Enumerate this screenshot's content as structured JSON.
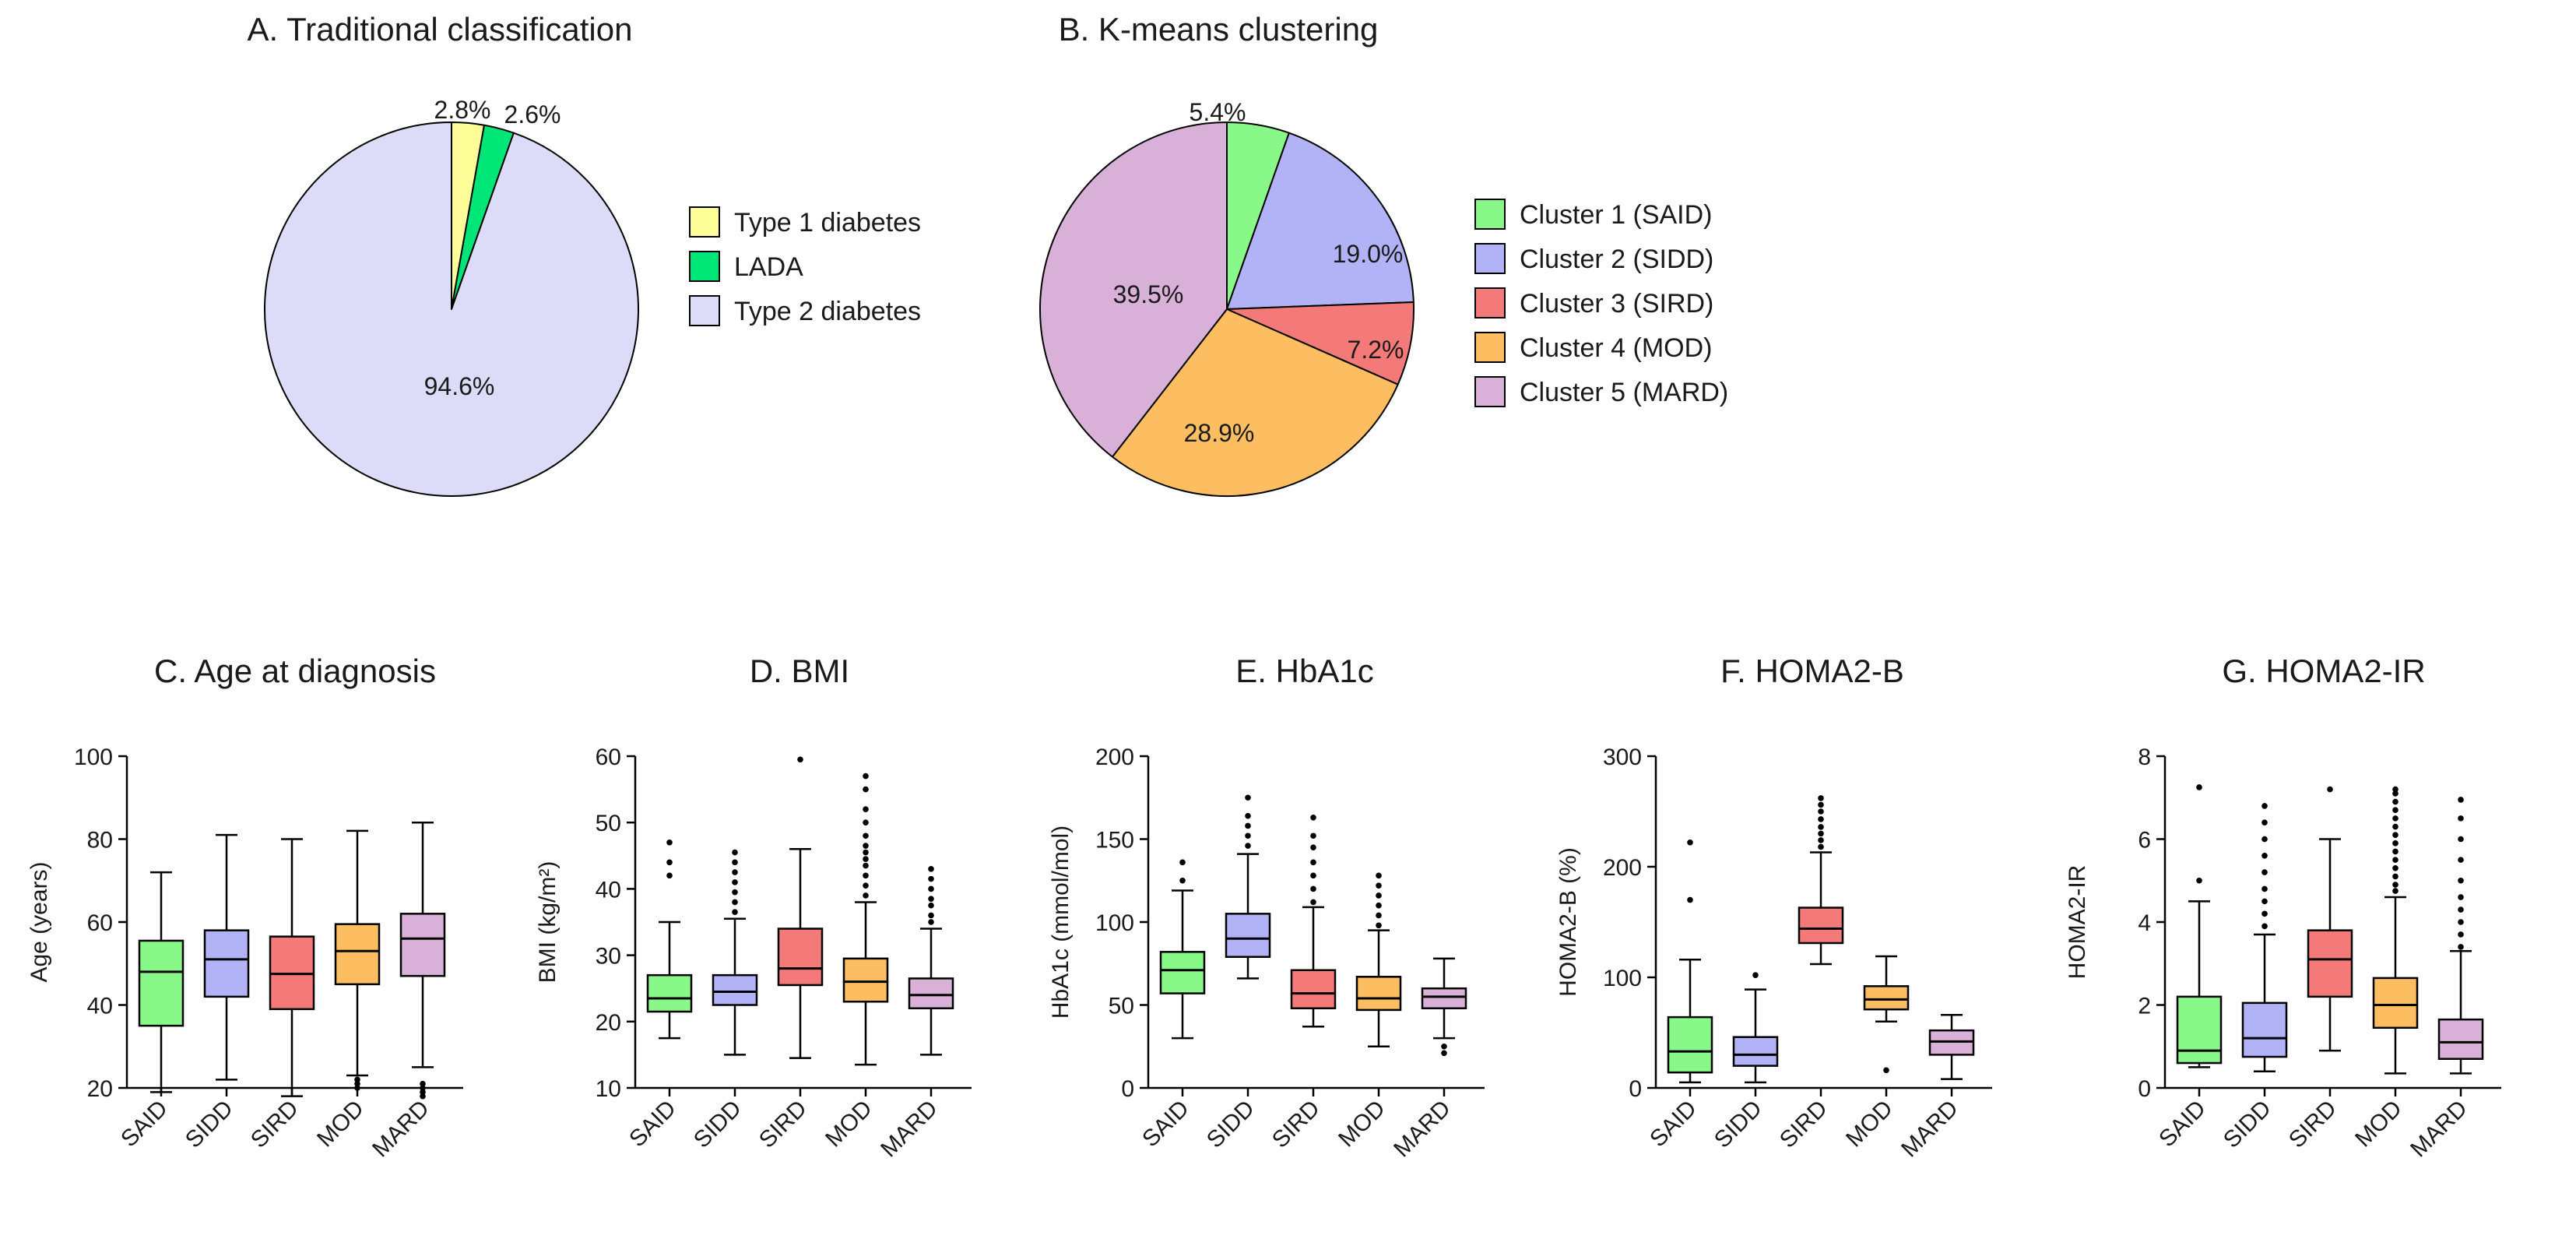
{
  "chart_data": [
    {
      "type": "pie",
      "panel": "A",
      "title": "A. Traditional classification",
      "slices": [
        {
          "label": "Type 1 diabetes",
          "value": 2.8,
          "value_label": "2.8%",
          "color": "#ffff99"
        },
        {
          "label": "LADA",
          "value": 2.6,
          "value_label": "2.6%",
          "color": "#00e676"
        },
        {
          "label": "Type 2 diabetes",
          "value": 94.6,
          "value_label": "94.6%",
          "color": "#dcdcf8"
        }
      ],
      "legend_position": "right"
    },
    {
      "type": "pie",
      "panel": "B",
      "title": "B. K-means clustering",
      "slices": [
        {
          "label": "Cluster 1 (SAID)",
          "value": 5.4,
          "value_label": "5.4%",
          "color": "#88f888"
        },
        {
          "label": "Cluster 2 (SIDD)",
          "value": 19.0,
          "value_label": "19.0%",
          "color": "#b2b2f6"
        },
        {
          "label": "Cluster 3 (SIRD)",
          "value": 7.2,
          "value_label": "7.2%",
          "color": "#f47a7a"
        },
        {
          "label": "Cluster 4 (MOD)",
          "value": 28.9,
          "value_label": "28.9%",
          "color": "#fcbe60"
        },
        {
          "label": "Cluster 5 (MARD)",
          "value": 39.5,
          "value_label": "39.5%",
          "color": "#d8b0d8"
        }
      ],
      "legend_position": "right"
    },
    {
      "type": "box",
      "panel": "C",
      "title": "C. Age at diagnosis",
      "ylabel": "Age (years)",
      "ylim": [
        20,
        100
      ],
      "yticks": [
        "20",
        "40",
        "60",
        "80",
        "100"
      ],
      "categories": [
        "SAID",
        "SIDD",
        "SIRD",
        "MOD",
        "MARD"
      ],
      "colors": [
        "#88f888",
        "#b2b2f6",
        "#f47a7a",
        "#fcbe60",
        "#d8b0d8"
      ],
      "boxes": [
        {
          "min": 19,
          "q1": 35,
          "median": 48,
          "q3": 55.5,
          "max": 72,
          "outliers": []
        },
        {
          "min": 22,
          "q1": 42,
          "median": 51,
          "q3": 58,
          "max": 81,
          "outliers": []
        },
        {
          "min": 18,
          "q1": 39,
          "median": 47.5,
          "q3": 56.5,
          "max": 80,
          "outliers": []
        },
        {
          "min": 23,
          "q1": 45,
          "median": 53,
          "q3": 59.5,
          "max": 82,
          "outliers": [
            22,
            21,
            20
          ]
        },
        {
          "min": 25,
          "q1": 47,
          "median": 56,
          "q3": 62,
          "max": 84,
          "outliers": [
            21,
            20,
            19,
            18
          ]
        }
      ]
    },
    {
      "type": "box",
      "panel": "D",
      "title": "D. BMI",
      "ylabel": "BMI (kg/m²)",
      "ylim": [
        10,
        60
      ],
      "yticks": [
        "10",
        "20",
        "30",
        "40",
        "50",
        "60"
      ],
      "categories": [
        "SAID",
        "SIDD",
        "SIRD",
        "MOD",
        "MARD"
      ],
      "colors": [
        "#88f888",
        "#b2b2f6",
        "#f47a7a",
        "#fcbe60",
        "#d8b0d8"
      ],
      "boxes": [
        {
          "min": 17.5,
          "q1": 21.5,
          "median": 23.5,
          "q3": 27,
          "max": 35,
          "outliers": [
            42,
            44,
            47
          ]
        },
        {
          "min": 15,
          "q1": 22.5,
          "median": 24.5,
          "q3": 27,
          "max": 35.5,
          "outliers": [
            36.5,
            38,
            39.5,
            41,
            42.5,
            44,
            45.5
          ]
        },
        {
          "min": 14.5,
          "q1": 25.5,
          "median": 28,
          "q3": 34,
          "max": 46,
          "outliers": [
            59.5
          ]
        },
        {
          "min": 13.5,
          "q1": 23,
          "median": 26,
          "q3": 29.5,
          "max": 38,
          "outliers": [
            39,
            40.5,
            42,
            43.5,
            44.5,
            45.5,
            46.5,
            48,
            50,
            52,
            55,
            57
          ]
        },
        {
          "min": 15,
          "q1": 22,
          "median": 24,
          "q3": 26.5,
          "max": 34,
          "outliers": [
            35,
            36,
            37.5,
            38.5,
            40,
            41.5,
            43
          ]
        }
      ]
    },
    {
      "type": "box",
      "panel": "E",
      "title": "E. HbA1c",
      "ylabel": "HbA1c (mmol/mol)",
      "ylim": [
        0,
        200
      ],
      "yticks": [
        "0",
        "50",
        "100",
        "150",
        "200"
      ],
      "categories": [
        "SAID",
        "SIDD",
        "SIRD",
        "MOD",
        "MARD"
      ],
      "colors": [
        "#88f888",
        "#b2b2f6",
        "#f47a7a",
        "#fcbe60",
        "#d8b0d8"
      ],
      "boxes": [
        {
          "min": 30,
          "q1": 57,
          "median": 71,
          "q3": 82,
          "max": 119,
          "outliers": [
            125,
            136
          ]
        },
        {
          "min": 66,
          "q1": 79,
          "median": 90,
          "q3": 105,
          "max": 141,
          "outliers": [
            146,
            152,
            158,
            164,
            175
          ]
        },
        {
          "min": 37,
          "q1": 48,
          "median": 57,
          "q3": 71,
          "max": 109,
          "outliers": [
            112,
            120,
            128,
            136,
            145,
            152,
            163
          ]
        },
        {
          "min": 25,
          "q1": 47,
          "median": 54,
          "q3": 67,
          "max": 95,
          "outliers": [
            98,
            104,
            110,
            116,
            122,
            128
          ]
        },
        {
          "min": 30,
          "q1": 48,
          "median": 55,
          "q3": 60,
          "max": 78,
          "outliers": [
            25,
            21
          ]
        }
      ]
    },
    {
      "type": "box",
      "panel": "F",
      "title": "F. HOMA2-B",
      "ylabel": "HOMA2-B (%)",
      "ylim": [
        0,
        300
      ],
      "yticks": [
        "0",
        "100",
        "200",
        "300"
      ],
      "categories": [
        "SAID",
        "SIDD",
        "SIRD",
        "MOD",
        "MARD"
      ],
      "colors": [
        "#88f888",
        "#b2b2f6",
        "#f47a7a",
        "#fcbe60",
        "#d8b0d8"
      ],
      "boxes": [
        {
          "min": 5,
          "q1": 14,
          "median": 33,
          "q3": 64,
          "max": 116,
          "outliers": [
            170,
            222
          ]
        },
        {
          "min": 5,
          "q1": 20,
          "median": 30,
          "q3": 46,
          "max": 89,
          "outliers": [
            102
          ]
        },
        {
          "min": 112,
          "q1": 131,
          "median": 144,
          "q3": 163,
          "max": 213,
          "outliers": [
            218,
            224,
            230,
            236,
            243,
            250,
            256,
            262
          ]
        },
        {
          "min": 60,
          "q1": 71,
          "median": 80,
          "q3": 92,
          "max": 119,
          "outliers": [
            16
          ]
        },
        {
          "min": 8,
          "q1": 30,
          "median": 42,
          "q3": 52,
          "max": 66,
          "outliers": []
        }
      ]
    },
    {
      "type": "box",
      "panel": "G",
      "title": "G. HOMA2-IR",
      "ylabel": "HOMA2-IR",
      "ylim": [
        0,
        8
      ],
      "yticks": [
        "0",
        "2",
        "4",
        "6",
        "8"
      ],
      "categories": [
        "SAID",
        "SIDD",
        "SIRD",
        "MOD",
        "MARD"
      ],
      "colors": [
        "#88f888",
        "#b2b2f6",
        "#f47a7a",
        "#fcbe60",
        "#d8b0d8"
      ],
      "boxes": [
        {
          "min": 0.5,
          "q1": 0.6,
          "median": 0.9,
          "q3": 2.2,
          "max": 4.5,
          "outliers": [
            5.0,
            7.25
          ]
        },
        {
          "min": 0.4,
          "q1": 0.75,
          "median": 1.2,
          "q3": 2.05,
          "max": 3.7,
          "outliers": [
            3.9,
            4.2,
            4.5,
            4.8,
            5.2,
            5.6,
            6.0,
            6.4,
            6.8
          ]
        },
        {
          "min": 0.9,
          "q1": 2.2,
          "median": 3.1,
          "q3": 3.8,
          "max": 6.0,
          "outliers": [
            7.2
          ]
        },
        {
          "min": 0.35,
          "q1": 1.45,
          "median": 2.0,
          "q3": 2.65,
          "max": 4.6,
          "outliers": [
            4.75,
            4.9,
            5.1,
            5.3,
            5.5,
            5.7,
            5.9,
            6.1,
            6.3,
            6.5,
            6.7,
            6.9,
            7.1,
            7.2
          ]
        },
        {
          "min": 0.35,
          "q1": 0.7,
          "median": 1.1,
          "q3": 1.65,
          "max": 3.3,
          "outliers": [
            3.4,
            3.7,
            4.0,
            4.3,
            4.6,
            5.0,
            5.5,
            6.0,
            6.5,
            6.95
          ]
        }
      ]
    }
  ]
}
